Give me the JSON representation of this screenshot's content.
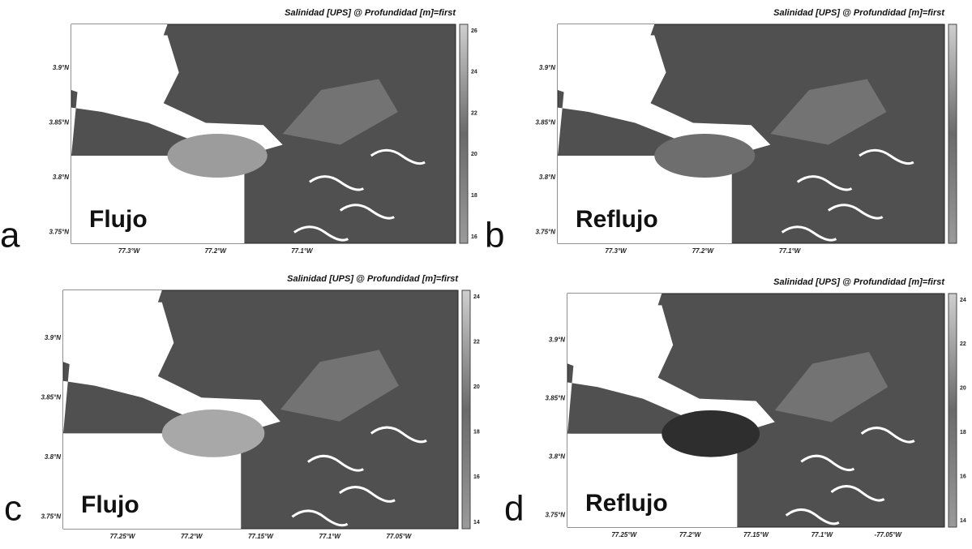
{
  "panels": [
    {
      "letter": "a",
      "title": "Salinidad [UPS] @ Profundidad [m]=first",
      "label": "Flujo",
      "lat_ticks": [
        "3.9°N",
        "3.85°N",
        "3.8°N",
        "3.75°N"
      ],
      "lon_ticks": [
        "77.3°W",
        "77.2°W",
        "77.1°W"
      ],
      "colorbar_ticks": [
        26,
        24,
        22,
        20,
        18,
        16
      ]
    },
    {
      "letter": "b",
      "title": "Salinidad [UPS] @ Profundidad [m]=first",
      "label": "Reflujo",
      "lat_ticks": [
        "3.9°N",
        "3.85°N",
        "3.8°N",
        "3.75°N"
      ],
      "lon_ticks": [
        "77.3°W",
        "77.2°W",
        "77.1°W"
      ]
    },
    {
      "letter": "c",
      "title": "Salinidad [UPS] @ Profundidad [m]=first",
      "label": "Flujo",
      "lat_ticks": [
        "3.9°N",
        "3.85°N",
        "3.8°N",
        "3.75°N"
      ],
      "lon_ticks": [
        "77.25°W",
        "77.2°W",
        "77.15°W",
        "77.1°W",
        "77.05°W"
      ],
      "colorbar_ticks": [
        24,
        22,
        20,
        18,
        16,
        14
      ]
    },
    {
      "letter": "d",
      "title": "Salinidad [UPS] @ Profundidad [m]=first",
      "label": "Reflujo",
      "lat_ticks": [
        "3.9°N",
        "3.85°N",
        "3.8°N",
        "3.75°N"
      ],
      "lon_ticks": [
        "77.25°W",
        "77.2°W",
        "77.15°W",
        "77.1°W",
        "-77.05°W"
      ],
      "colorbar_ticks": [
        24,
        22,
        20,
        18,
        16,
        14
      ]
    }
  ]
}
